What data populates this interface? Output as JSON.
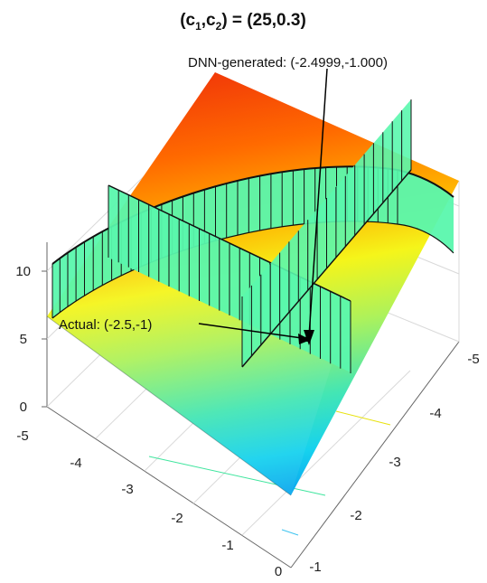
{
  "chart_data": {
    "type": "surface",
    "title": {
      "prefix": "(c",
      "sub1": "1",
      "sep": ",c",
      "sub2": "2",
      "suffix": ") = (25,0.3)"
    },
    "x_ticks": [
      "-5",
      "-4",
      "-3",
      "-2",
      "-1",
      "0"
    ],
    "y_ticks": [
      "-5",
      "-4",
      "-3",
      "-2",
      "-1"
    ],
    "z_ticks": [
      "0",
      "5",
      "10"
    ],
    "annotations": {
      "dnn": "DNN-generated: (-2.4999,-1.000)",
      "actual": "Actual: (-2.5,-1)"
    },
    "markers": {
      "dnn_point": [
        -2.4999,
        -1.0
      ],
      "actual_point": [
        -2.5,
        -1.0
      ]
    },
    "colormap": "jet",
    "grid": true
  }
}
